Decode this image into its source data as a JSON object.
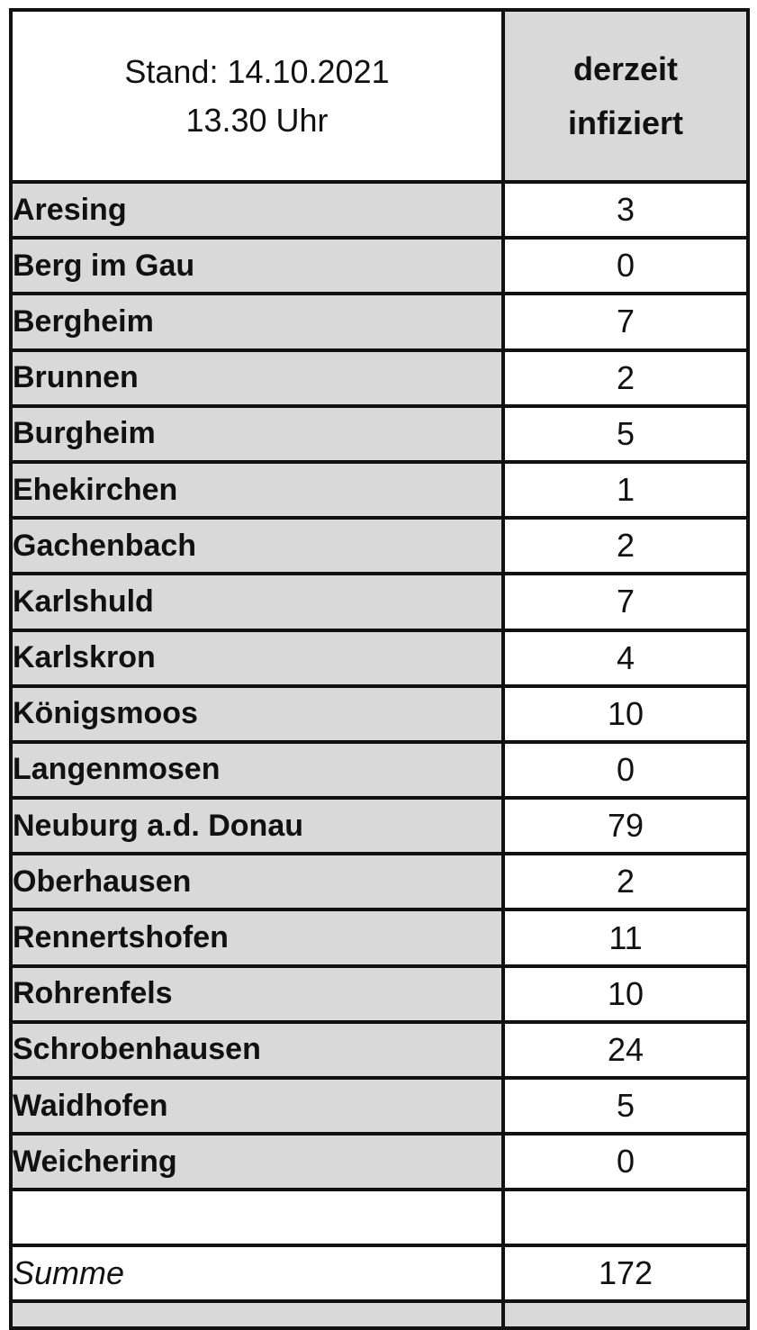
{
  "header": {
    "stand": "Stand: 14.10.2021",
    "time": "13.30 Uhr",
    "column_title_line1": "derzeit",
    "column_title_line2": "infiziert"
  },
  "rows": [
    {
      "name": "Aresing",
      "value": "3"
    },
    {
      "name": "Berg im Gau",
      "value": "0"
    },
    {
      "name": "Bergheim",
      "value": "7"
    },
    {
      "name": "Brunnen",
      "value": "2"
    },
    {
      "name": "Burgheim",
      "value": "5"
    },
    {
      "name": "Ehekirchen",
      "value": "1"
    },
    {
      "name": "Gachenbach",
      "value": "2"
    },
    {
      "name": "Karlshuld",
      "value": "7"
    },
    {
      "name": "Karlskron",
      "value": "4"
    },
    {
      "name": "Königsmoos",
      "value": "10"
    },
    {
      "name": "Langenmosen",
      "value": "0"
    },
    {
      "name": "Neuburg a.d. Donau",
      "value": "79"
    },
    {
      "name": "Oberhausen",
      "value": "2"
    },
    {
      "name": "Rennertshofen",
      "value": "11"
    },
    {
      "name": "Rohrenfels",
      "value": "10"
    },
    {
      "name": "Schrobenhausen",
      "value": "24"
    },
    {
      "name": "Waidhofen",
      "value": "5"
    },
    {
      "name": "Weichering",
      "value": "0"
    }
  ],
  "summary": {
    "label": "Summe",
    "value": "172"
  },
  "colors": {
    "shaded_cell": "#d9d9d9",
    "border": "#111111"
  }
}
